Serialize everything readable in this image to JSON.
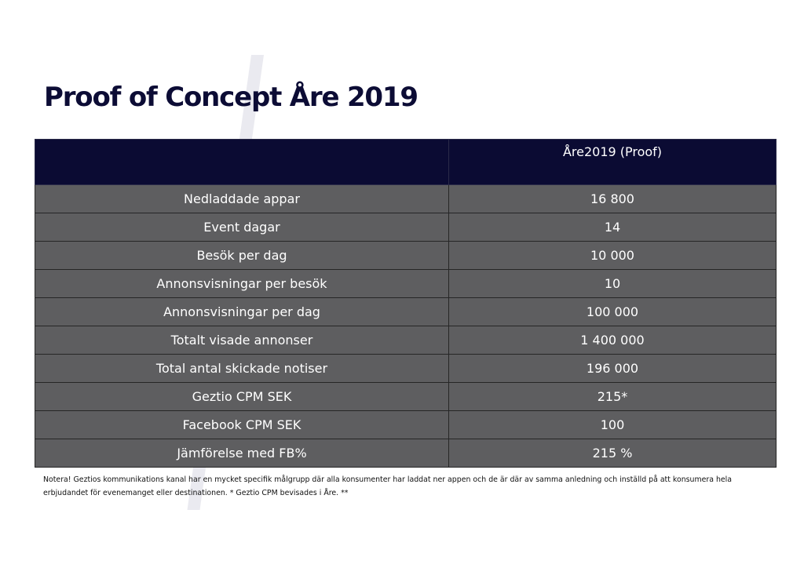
{
  "title": "Proof of Concept Åre 2019",
  "table": {
    "header": [
      "",
      "Åre2019 (Proof)"
    ],
    "rows": [
      {
        "label": "Nedladdade appar",
        "value": "16 800"
      },
      {
        "label": "Event dagar",
        "value": "14"
      },
      {
        "label": "Besök per dag",
        "value": "10 000"
      },
      {
        "label": "Annonsvisningar per besök",
        "value": "10"
      },
      {
        "label": "Annonsvisningar per dag",
        "value": "100 000"
      },
      {
        "label": "Totalt visade annonser",
        "value": "1 400 000"
      },
      {
        "label": "Total antal skickade notiser",
        "value": "196 000"
      },
      {
        "label": "Geztio CPM SEK",
        "value": "215*"
      },
      {
        "label": "Facebook CPM SEK",
        "value": "100"
      },
      {
        "label": "Jämförelse med FB%",
        "value": "215 %"
      }
    ]
  },
  "note": "Notera! Geztios kommunikations kanal har en mycket specifik målgrupp där alla konsumenter har laddat ner appen och de är där av samma anledning och inställd på att konsumera hela erbjudandet för evenemanget eller destinationen. * Geztio CPM bevisades i Åre. **",
  "colors": {
    "title": "#0c0c35",
    "header_bg": "#0b0b33",
    "row_bg": "#5e5e60",
    "slash": "#eaeaf0"
  }
}
